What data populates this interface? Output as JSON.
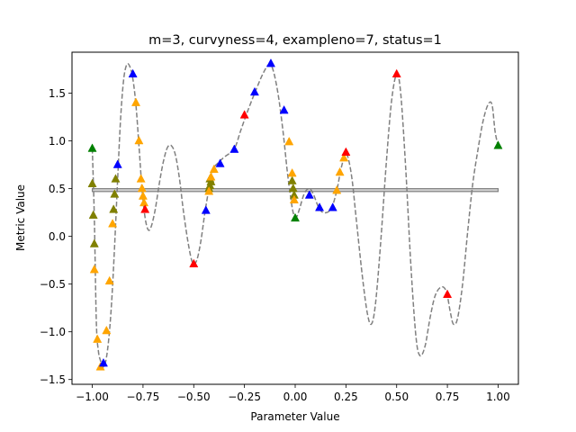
{
  "chart_data": {
    "type": "line",
    "title": "m=3, curvyness=4, exampleno=7, status=1",
    "xlabel": "Parameter Value",
    "ylabel": "Metric Value",
    "xlim": [
      -1.1,
      1.1
    ],
    "ylim": [
      -1.55,
      1.93
    ],
    "x_ticks": [
      -1.0,
      -0.75,
      -0.5,
      -0.25,
      0.0,
      0.25,
      0.5,
      0.75,
      1.0
    ],
    "x_tick_labels": [
      "−1.00",
      "−0.75",
      "−0.50",
      "−0.25",
      "0.00",
      "0.25",
      "0.50",
      "0.75",
      "1.00"
    ],
    "y_ticks": [
      -1.5,
      -1.0,
      -0.5,
      0.0,
      0.5,
      1.0,
      1.5
    ],
    "y_tick_labels": [
      "−1.5",
      "−1.0",
      "−0.5",
      "0.0",
      "0.5",
      "1.0",
      "1.5"
    ],
    "grid": false,
    "horizontal_band": {
      "y1": 0.47,
      "y2": 0.5,
      "x_range": [
        -1.0,
        1.0
      ],
      "color": "#808080"
    },
    "curve": {
      "color": "#808080",
      "style": "dashed",
      "points": [
        [
          -1.0,
          0.92
        ],
        [
          -0.99,
          0.2
        ],
        [
          -0.98,
          -0.9
        ],
        [
          -0.97,
          -1.2
        ],
        [
          -0.96,
          -1.3
        ],
        [
          -0.95,
          -1.37
        ],
        [
          -0.935,
          -1.32
        ],
        [
          -0.92,
          -1.1
        ],
        [
          -0.905,
          -0.7
        ],
        [
          -0.89,
          -0.1
        ],
        [
          -0.875,
          0.6
        ],
        [
          -0.86,
          1.25
        ],
        [
          -0.845,
          1.65
        ],
        [
          -0.83,
          1.8
        ],
        [
          -0.815,
          1.78
        ],
        [
          -0.8,
          1.65
        ],
        [
          -0.785,
          1.38
        ],
        [
          -0.77,
          0.95
        ],
        [
          -0.755,
          0.5
        ],
        [
          -0.74,
          0.2
        ],
        [
          -0.725,
          0.07
        ],
        [
          -0.71,
          0.1
        ],
        [
          -0.69,
          0.28
        ],
        [
          -0.67,
          0.55
        ],
        [
          -0.65,
          0.78
        ],
        [
          -0.63,
          0.93
        ],
        [
          -0.61,
          0.95
        ],
        [
          -0.59,
          0.85
        ],
        [
          -0.57,
          0.6
        ],
        [
          -0.55,
          0.25
        ],
        [
          -0.525,
          -0.1
        ],
        [
          -0.505,
          -0.28
        ],
        [
          -0.485,
          -0.25
        ],
        [
          -0.465,
          -0.05
        ],
        [
          -0.445,
          0.25
        ],
        [
          -0.425,
          0.5
        ],
        [
          -0.405,
          0.7
        ],
        [
          -0.38,
          0.77
        ],
        [
          -0.35,
          0.83
        ],
        [
          -0.3,
          0.92
        ],
        [
          -0.27,
          1.1
        ],
        [
          -0.24,
          1.28
        ],
        [
          -0.2,
          1.5
        ],
        [
          -0.16,
          1.7
        ],
        [
          -0.13,
          1.8
        ],
        [
          -0.11,
          1.75
        ],
        [
          -0.085,
          1.5
        ],
        [
          -0.06,
          1.1
        ],
        [
          -0.04,
          0.7
        ],
        [
          -0.025,
          0.45
        ],
        [
          -0.01,
          0.25
        ],
        [
          0.005,
          0.2
        ],
        [
          0.02,
          0.28
        ],
        [
          0.045,
          0.45
        ],
        [
          0.07,
          0.5
        ],
        [
          0.09,
          0.44
        ],
        [
          0.11,
          0.33
        ],
        [
          0.13,
          0.26
        ],
        [
          0.155,
          0.25
        ],
        [
          0.18,
          0.3
        ],
        [
          0.205,
          0.48
        ],
        [
          0.225,
          0.7
        ],
        [
          0.245,
          0.85
        ],
        [
          0.26,
          0.83
        ],
        [
          0.28,
          0.6
        ],
        [
          0.3,
          0.2
        ],
        [
          0.33,
          -0.4
        ],
        [
          0.355,
          -0.8
        ],
        [
          0.375,
          -0.92
        ],
        [
          0.395,
          -0.72
        ],
        [
          0.42,
          -0.1
        ],
        [
          0.45,
          0.8
        ],
        [
          0.475,
          1.42
        ],
        [
          0.5,
          1.7
        ],
        [
          0.52,
          1.5
        ],
        [
          0.545,
          0.7
        ],
        [
          0.57,
          -0.3
        ],
        [
          0.595,
          -1.05
        ],
        [
          0.615,
          -1.25
        ],
        [
          0.64,
          -1.15
        ],
        [
          0.665,
          -0.85
        ],
        [
          0.69,
          -0.62
        ],
        [
          0.72,
          -0.53
        ],
        [
          0.745,
          -0.58
        ],
        [
          0.765,
          -0.8
        ],
        [
          0.78,
          -0.92
        ],
        [
          0.8,
          -0.86
        ],
        [
          0.825,
          -0.5
        ],
        [
          0.85,
          0.05
        ],
        [
          0.875,
          0.55
        ],
        [
          0.9,
          0.9
        ],
        [
          0.925,
          1.2
        ],
        [
          0.95,
          1.38
        ],
        [
          0.97,
          1.38
        ],
        [
          0.985,
          1.1
        ],
        [
          1.0,
          0.95
        ]
      ]
    },
    "series": [
      {
        "color": "#008000",
        "marker": "triangle",
        "points": [
          [
            -1.0,
            0.92
          ],
          [
            0.0,
            0.19
          ],
          [
            1.0,
            0.95
          ]
        ]
      },
      {
        "color": "#808000",
        "marker": "triangle",
        "points": [
          [
            -1.0,
            0.55
          ],
          [
            -0.995,
            0.22
          ],
          [
            -0.99,
            -0.08
          ],
          [
            -0.885,
            0.6
          ],
          [
            -0.89,
            0.44
          ],
          [
            -0.895,
            0.28
          ],
          [
            -0.42,
            0.6
          ],
          [
            -0.415,
            0.57
          ],
          [
            -0.42,
            0.53
          ],
          [
            -0.425,
            0.5
          ],
          [
            -0.015,
            0.58
          ],
          [
            -0.01,
            0.5
          ],
          [
            -0.005,
            0.43
          ]
        ]
      },
      {
        "color": "#FFA500",
        "marker": "triangle",
        "points": [
          [
            -0.99,
            -0.35
          ],
          [
            -0.975,
            -1.08
          ],
          [
            -0.96,
            -1.37
          ],
          [
            -0.93,
            -0.99
          ],
          [
            -0.915,
            -0.47
          ],
          [
            -0.9,
            0.13
          ],
          [
            -0.785,
            1.4
          ],
          [
            -0.77,
            1.0
          ],
          [
            -0.76,
            0.6
          ],
          [
            -0.755,
            0.5
          ],
          [
            -0.75,
            0.42
          ],
          [
            -0.745,
            0.35
          ],
          [
            -0.425,
            0.47
          ],
          [
            -0.415,
            0.62
          ],
          [
            -0.4,
            0.7
          ],
          [
            -0.03,
            0.99
          ],
          [
            -0.015,
            0.66
          ],
          [
            -0.005,
            0.38
          ],
          [
            0.205,
            0.48
          ],
          [
            0.22,
            0.67
          ],
          [
            0.24,
            0.82
          ]
        ]
      },
      {
        "color": "#0000FF",
        "marker": "triangle",
        "points": [
          [
            -0.945,
            -1.33
          ],
          [
            -0.875,
            0.75
          ],
          [
            -0.8,
            1.7
          ],
          [
            -0.44,
            0.27
          ],
          [
            -0.37,
            0.76
          ],
          [
            -0.3,
            0.91
          ],
          [
            -0.2,
            1.51
          ],
          [
            -0.12,
            1.81
          ],
          [
            -0.055,
            1.32
          ],
          [
            0.07,
            0.43
          ],
          [
            0.12,
            0.3
          ],
          [
            0.185,
            0.3
          ]
        ]
      },
      {
        "color": "#FF0000",
        "marker": "triangle",
        "points": [
          [
            -0.74,
            0.28
          ],
          [
            -0.5,
            -0.29
          ],
          [
            -0.25,
            1.27
          ],
          [
            0.25,
            0.88
          ],
          [
            0.5,
            1.7
          ],
          [
            0.75,
            -0.61
          ]
        ]
      }
    ]
  }
}
